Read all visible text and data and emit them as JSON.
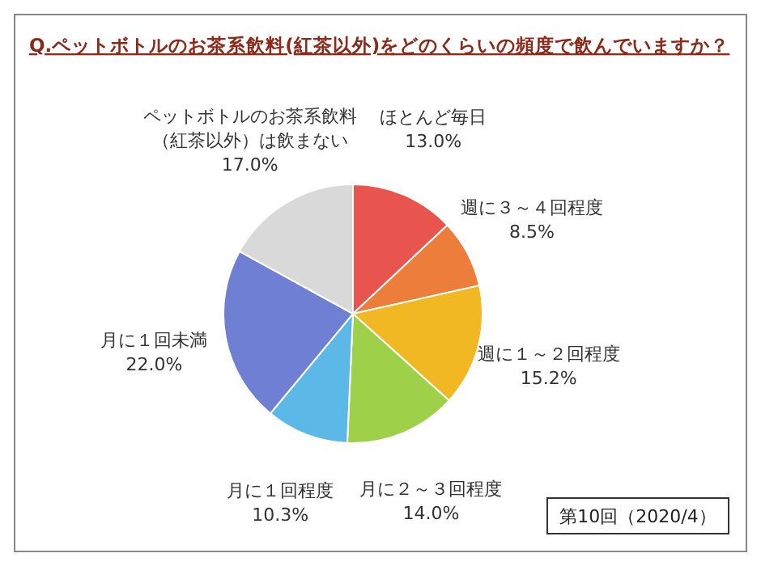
{
  "chart_data": {
    "type": "pie",
    "title": "Q.ペットボトルのお茶系飲料(紅茶以外)をどのくらいの頻度で飲んでいますか？",
    "categories": [
      "ほとんど毎日",
      "週に３～４回程度",
      "週に１～２回程度",
      "月に２～３回程度",
      "月に１回程度",
      "月に１回未満",
      "ペットボトルのお茶系飲料（紅茶以外）は飲まない"
    ],
    "values": [
      13.0,
      8.5,
      15.2,
      14.0,
      10.3,
      22.0,
      17.0
    ],
    "value_labels": [
      "13.0%",
      "8.5%",
      "15.2%",
      "14.0%",
      "10.3%",
      "22.0%",
      "17.0%"
    ],
    "colors": [
      "#e8554e",
      "#ed7d3a",
      "#f2b824",
      "#9fd04a",
      "#5cb8e6",
      "#6f7fd4",
      "#d9d9d9"
    ],
    "annotations": [
      "第10回（2020/4）"
    ]
  }
}
